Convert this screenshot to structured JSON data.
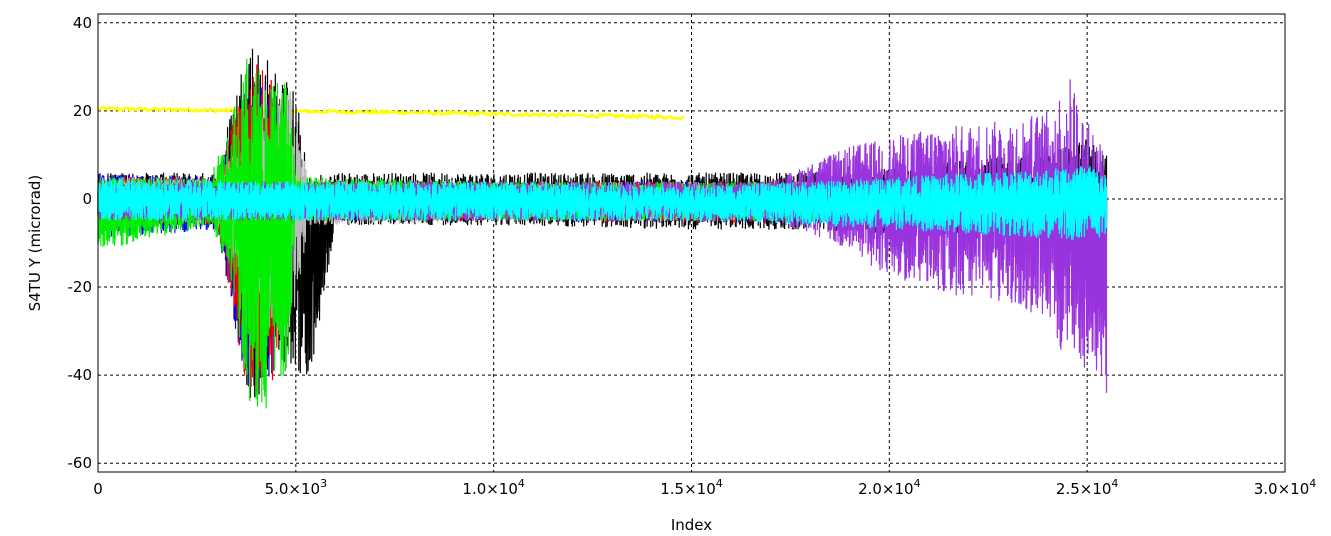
{
  "chart_data": {
    "type": "line",
    "title": "",
    "xlabel": "Index",
    "ylabel": "S4TU Y (microrad)",
    "xlim": [
      0,
      30000
    ],
    "ylim": [
      -62,
      42
    ],
    "grid": true,
    "x_ticks": [
      {
        "value": 0,
        "label": "0"
      },
      {
        "value": 5000,
        "label": "5.0×10",
        "exp": "3"
      },
      {
        "value": 10000,
        "label": "1.0×10",
        "exp": "4"
      },
      {
        "value": 15000,
        "label": "1.5×10",
        "exp": "4"
      },
      {
        "value": 20000,
        "label": "2.0×10",
        "exp": "4"
      },
      {
        "value": 25000,
        "label": "2.5×10",
        "exp": "4"
      },
      {
        "value": 30000,
        "label": "3.0×10",
        "exp": "4"
      }
    ],
    "y_ticks": [
      {
        "value": 40,
        "label": "40"
      },
      {
        "value": 20,
        "label": "20"
      },
      {
        "value": 0,
        "label": "0"
      },
      {
        "value": -20,
        "label": "-20"
      },
      {
        "value": -40,
        "label": "-40"
      },
      {
        "value": -60,
        "label": "-60"
      }
    ],
    "series": [
      {
        "color": "#ffff00",
        "x": [
          0,
          2000,
          4000,
          6000,
          8000,
          10000,
          12000,
          14000,
          14800
        ],
        "y": [
          20.5,
          20.3,
          20.0,
          19.8,
          19.6,
          19.3,
          19.0,
          18.7,
          18.5
        ]
      },
      {
        "color": "#000000",
        "envelope": {
          "x": [
            0,
            3000,
            3800,
            4500,
            5000,
            5300,
            6000,
            10000,
            15000,
            18000,
            20000,
            22000,
            24000,
            25000,
            25500
          ],
          "hi": [
            6,
            6,
            38,
            30,
            25,
            6,
            6,
            6,
            6,
            6,
            7,
            9,
            10,
            14,
            10
          ],
          "lo": [
            -6,
            -6,
            -48,
            -40,
            -38,
            -45,
            -6,
            -6,
            -7,
            -7,
            -8,
            -9,
            -11,
            -15,
            -12
          ]
        }
      },
      {
        "color": "#0000ff",
        "envelope": {
          "x": [
            0,
            3000,
            3800,
            4500,
            5000,
            5300,
            10000,
            25500
          ],
          "hi": [
            6,
            5,
            30,
            25,
            5,
            4,
            4,
            4
          ],
          "lo": [
            -9,
            -7,
            -45,
            -40,
            -8,
            -5,
            -5,
            -6
          ]
        }
      },
      {
        "color": "#ff0000",
        "envelope": {
          "x": [
            0,
            3000,
            3800,
            4500,
            5000,
            5300,
            10000,
            25500
          ],
          "hi": [
            5,
            5,
            32,
            28,
            5,
            4,
            4,
            4
          ],
          "lo": [
            -6,
            -6,
            -45,
            -43,
            -6,
            -5,
            -5,
            -6
          ]
        }
      },
      {
        "color": "#bbbbbb",
        "envelope": {
          "x": [
            0,
            3000,
            4200,
            4900,
            5300,
            10000,
            25500
          ],
          "hi": [
            5,
            5,
            20,
            26,
            5,
            4,
            4
          ],
          "lo": [
            -6,
            -6,
            -30,
            -32,
            -6,
            -5,
            -5
          ]
        }
      },
      {
        "color": "#00ee00",
        "envelope": {
          "x": [
            0,
            2800,
            3300,
            3800,
            4300,
            4800,
            5000,
            10000,
            25500
          ],
          "hi": [
            5,
            5,
            15,
            35,
            25,
            28,
            5,
            4,
            4
          ],
          "lo": [
            -12,
            -6,
            -15,
            -47,
            -48,
            -38,
            -5,
            -5,
            -5
          ]
        }
      },
      {
        "color": "#9933dd",
        "envelope": {
          "x": [
            0,
            10000,
            17000,
            18000,
            19000,
            20000,
            21000,
            22000,
            23000,
            24000,
            24600,
            25000,
            25500
          ],
          "hi": [
            4,
            4,
            4,
            8,
            12,
            14,
            16,
            17,
            18,
            20,
            28,
            18,
            14
          ],
          "lo": [
            -5,
            -5,
            -5,
            -8,
            -12,
            -18,
            -20,
            -23,
            -24,
            -28,
            -40,
            -38,
            -46
          ]
        }
      },
      {
        "color": "#00ffff",
        "envelope": {
          "x": [
            0,
            5000,
            10000,
            15000,
            18000,
            20000,
            22000,
            24000,
            25000,
            25500
          ],
          "hi": [
            5,
            4,
            4,
            3,
            4,
            5,
            6,
            7,
            8,
            6
          ],
          "lo": [
            -5,
            -5,
            -5,
            -5,
            -6,
            -7,
            -8,
            -9,
            -10,
            -8
          ]
        }
      }
    ]
  }
}
